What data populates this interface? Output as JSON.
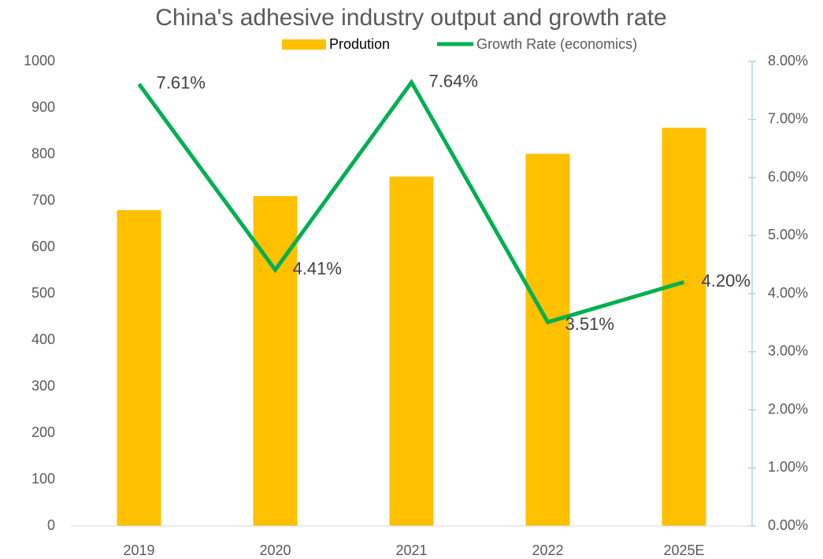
{
  "chart_data": {
    "type": "bar-line",
    "title": "China's adhesive industry output and growth rate",
    "categories": [
      "2019",
      "2020",
      "2021",
      "2022",
      "2025E"
    ],
    "series": [
      {
        "name": "Prodution",
        "type": "bar",
        "color": "#ffc000",
        "values": [
          680,
          710,
          752,
          801,
          857
        ]
      },
      {
        "name": "Growth Rate (economics)",
        "type": "line",
        "axis": "y2",
        "color": "#00b050",
        "values": [
          7.61,
          4.41,
          7.64,
          3.51,
          4.2
        ],
        "value_labels": [
          "7.61%",
          "4.41%",
          "7.64%",
          "3.51%",
          "4.20%"
        ]
      }
    ],
    "ylim": [
      0,
      1000
    ],
    "yticks": [
      0,
      100,
      200,
      300,
      400,
      500,
      600,
      700,
      800,
      900,
      1000
    ],
    "y2lim": [
      0,
      8
    ],
    "y2ticks": [
      {
        "value": 0,
        "label": "0.00%"
      },
      {
        "value": 1,
        "label": "1.00%"
      },
      {
        "value": 2,
        "label": "2.00%"
      },
      {
        "value": 3,
        "label": "3.00%"
      },
      {
        "value": 4,
        "label": "4.00%"
      },
      {
        "value": 5,
        "label": "5.00%"
      },
      {
        "value": 6,
        "label": "6.00%"
      },
      {
        "value": 7,
        "label": "7.00%"
      },
      {
        "value": 8,
        "label": "8.00%"
      }
    ],
    "grid": false,
    "legend": "top"
  }
}
